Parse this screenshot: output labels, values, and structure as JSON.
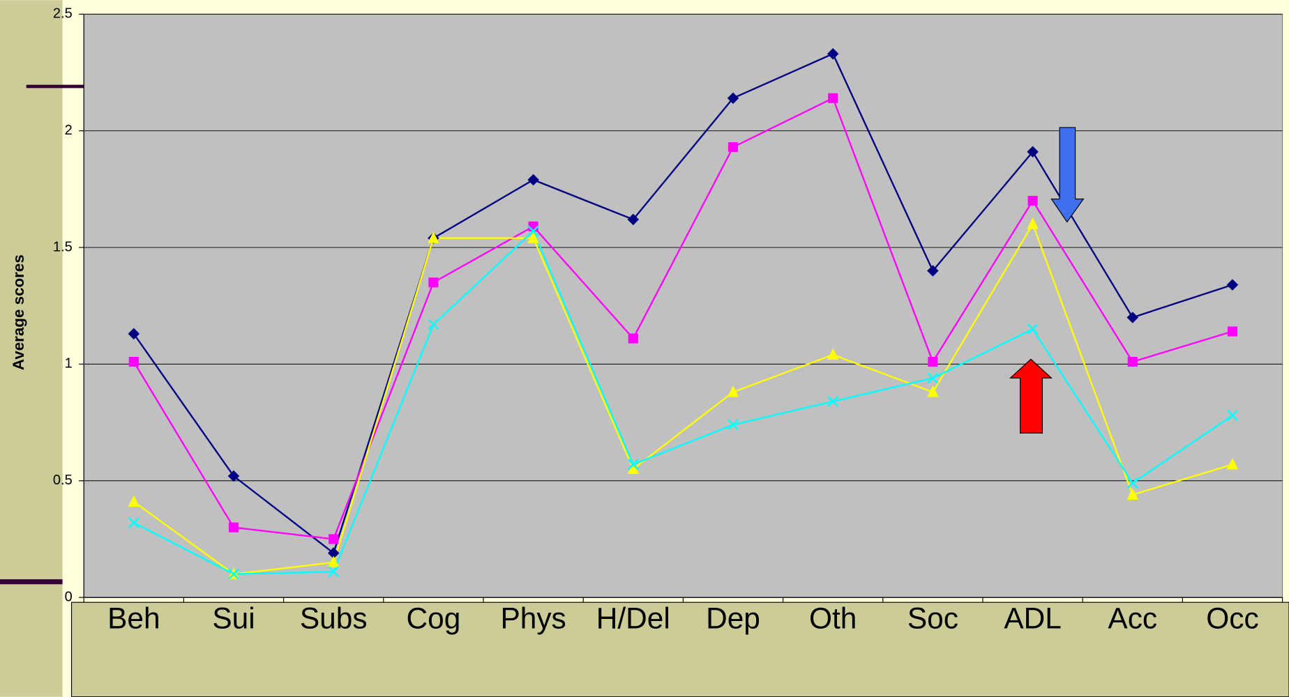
{
  "chart_data": {
    "type": "line",
    "ylabel": "Average scores",
    "categories": [
      "Beh",
      "Sui",
      "Subs",
      "Cog",
      "Phys",
      "H/Del",
      "Dep",
      "Oth",
      "Soc",
      "ADL",
      "Acc",
      "Occ"
    ],
    "series": [
      {
        "color": "#000080",
        "marker": "diamond",
        "values": [
          1.13,
          0.52,
          0.19,
          1.54,
          1.79,
          1.62,
          2.14,
          2.33,
          1.4,
          1.91,
          1.2,
          1.34
        ]
      },
      {
        "color": "#ff00ff",
        "marker": "square",
        "values": [
          1.01,
          0.3,
          0.25,
          1.35,
          1.59,
          1.11,
          1.93,
          2.14,
          1.01,
          1.7,
          1.01,
          1.14
        ]
      },
      {
        "color": "#ffff00",
        "marker": "triangle",
        "values": [
          0.41,
          0.1,
          0.15,
          1.54,
          1.54,
          0.55,
          0.88,
          1.04,
          0.88,
          1.6,
          0.44,
          0.57
        ]
      },
      {
        "color": "#00ffff",
        "marker": "x",
        "values": [
          0.32,
          0.1,
          0.11,
          1.17,
          1.57,
          0.57,
          0.74,
          0.84,
          0.94,
          1.15,
          0.49,
          0.78
        ]
      }
    ],
    "ylim": [
      0,
      2.5
    ],
    "yticks": [
      0,
      0.5,
      1,
      1.5,
      2,
      2.5
    ],
    "grid": true
  }
}
